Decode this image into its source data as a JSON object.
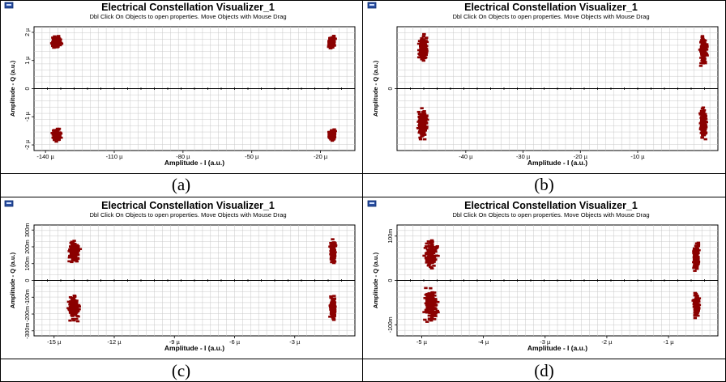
{
  "captions": [
    "(a)",
    "(b)",
    "(c)",
    "(d)"
  ],
  "window_icon": "app-icon",
  "colors": {
    "point": "#8b0000",
    "grid": "#c8c8c8",
    "axis": "#000000",
    "frame": "#000000"
  },
  "chart_data": [
    {
      "type": "scatter",
      "title": "Electrical Constellation Visualizer_1",
      "subtitle": "Dbl Click On Objects to open properties.  Move Objects with Mouse Drag",
      "xlabel": "Amplitude - I (a.u.)",
      "ylabel": "Amplitude - Q (a.u.)",
      "xlim": [
        -145,
        -5
      ],
      "ylim": [
        -2.2,
        2.2
      ],
      "xticks": [
        -140,
        -110,
        -80,
        -50,
        -20
      ],
      "xtick_labels": [
        "-140 µ",
        "-110 µ",
        "-80 µ",
        "-50 µ",
        "-20 µ"
      ],
      "yticks": [
        -2,
        -1,
        0,
        1,
        2
      ],
      "ytick_labels": [
        "-2 µ",
        "-1 µ",
        "0",
        "1 µ",
        "2 µ"
      ],
      "grid": true,
      "clusters": [
        {
          "x": -135,
          "y": 1.65,
          "sx": 1.2,
          "sy": 0.12
        },
        {
          "x": -15,
          "y": 1.65,
          "sx": 0.8,
          "sy": 0.12
        },
        {
          "x": -135,
          "y": -1.65,
          "sx": 1.2,
          "sy": 0.12
        },
        {
          "x": -15,
          "y": -1.65,
          "sx": 0.8,
          "sy": 0.12
        }
      ]
    },
    {
      "type": "scatter",
      "title": "Electrical Constellation Visualizer_1",
      "subtitle": "Dbl Click On Objects to open properties.  Move Objects with Mouse Drag",
      "xlabel": "Amplitude - I (a.u.)",
      "ylabel": "Amplitude - Q (a.u.)",
      "xlim": [
        -52,
        4
      ],
      "ylim": [
        -2.3,
        2.3
      ],
      "xticks": [
        -40,
        -30,
        -20,
        -10
      ],
      "xtick_labels": [
        "-40 µ",
        "-30 µ",
        "-20 µ",
        "-10 µ"
      ],
      "yticks": [
        0
      ],
      "ytick_labels": [
        "0"
      ],
      "grid": true,
      "clusters": [
        {
          "x": -47.5,
          "y": 1.5,
          "sx": 0.5,
          "sy": 0.3
        },
        {
          "x": 1.5,
          "y": 1.4,
          "sx": 0.35,
          "sy": 0.3
        },
        {
          "x": -47.5,
          "y": -1.3,
          "sx": 0.5,
          "sy": 0.35
        },
        {
          "x": 1.5,
          "y": -1.3,
          "sx": 0.35,
          "sy": 0.35
        }
      ]
    },
    {
      "type": "scatter",
      "title": "Electrical Constellation Visualizer_1",
      "subtitle": "Dbl Click On Objects to open properties.  Move Objects with Mouse Drag",
      "xlabel": "Amplitude - I (a.u.)",
      "ylabel": "Amplitude - Q (a.u.)",
      "xlim": [
        -16,
        0
      ],
      "ylim": [
        -330,
        330
      ],
      "xticks": [
        -15,
        -12,
        -9,
        -6,
        -3
      ],
      "xtick_labels": [
        "-15 µ",
        "-12 µ",
        "-9 µ",
        "-6 µ",
        "-3 µ"
      ],
      "yticks": [
        -300,
        -200,
        -100,
        0,
        100,
        200,
        300
      ],
      "ytick_labels": [
        "-300m",
        "-200m",
        "-100m",
        "0",
        "100m",
        "200m",
        "300m"
      ],
      "grid": true,
      "clusters": [
        {
          "x": -14.0,
          "y": 170,
          "sx": 0.16,
          "sy": 45
        },
        {
          "x": -1.1,
          "y": 170,
          "sx": 0.08,
          "sy": 40
        },
        {
          "x": -14.0,
          "y": -165,
          "sx": 0.16,
          "sy": 45
        },
        {
          "x": -1.1,
          "y": -165,
          "sx": 0.08,
          "sy": 40
        }
      ]
    },
    {
      "type": "scatter",
      "title": "Electrical Constellation Visualizer_1",
      "subtitle": "Dbl Click On Objects to open properties.  Move Objects with Mouse Drag",
      "xlabel": "Amplitude - I (a.u.)",
      "ylabel": "Amplitude - Q (a.u.)",
      "xlim": [
        -5.4,
        -0.2
      ],
      "ylim": [
        -125,
        125
      ],
      "xticks": [
        -5,
        -4,
        -3,
        -2,
        -1
      ],
      "xtick_labels": [
        "-5 µ",
        "-4 µ",
        "-3 µ",
        "-2 µ",
        "-1 µ"
      ],
      "yticks": [
        -100,
        0,
        100
      ],
      "ytick_labels": [
        "-100m",
        "0",
        "100m"
      ],
      "grid": true,
      "clusters": [
        {
          "x": -4.85,
          "y": 60,
          "sx": 0.06,
          "sy": 20
        },
        {
          "x": -0.55,
          "y": 55,
          "sx": 0.025,
          "sy": 18
        },
        {
          "x": -4.85,
          "y": -55,
          "sx": 0.06,
          "sy": 22
        },
        {
          "x": -0.55,
          "y": -55,
          "sx": 0.025,
          "sy": 18
        }
      ]
    }
  ]
}
